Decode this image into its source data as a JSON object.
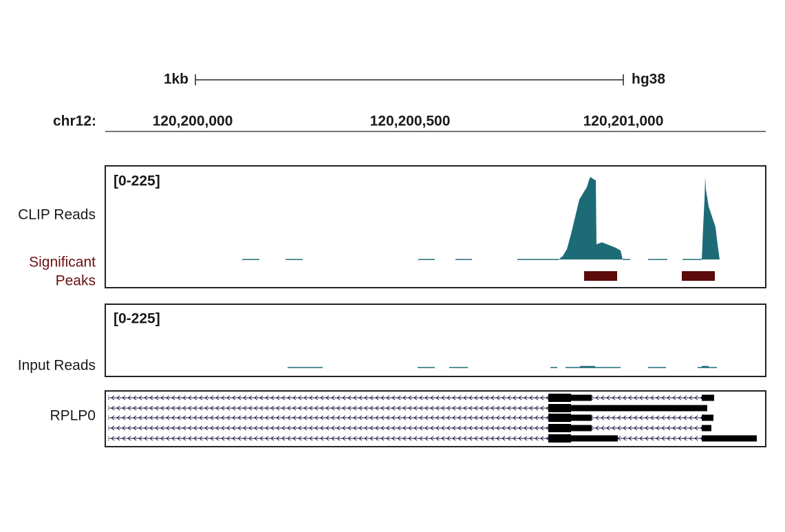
{
  "scale_bar": {
    "label": "1kb",
    "genome": "hg38"
  },
  "ruler": {
    "chromosome": "chr12:",
    "positions": [
      "120,200,000",
      "120,200,500",
      "120,201,000"
    ]
  },
  "tracks": [
    {
      "name": "CLIP Reads",
      "range": "[0-225]"
    },
    {
      "name": "Input Reads",
      "range": "[0-225]"
    }
  ],
  "peaks_track": {
    "name_lines": [
      "Significant",
      "Peaks"
    ]
  },
  "gene": {
    "name": "RPLP0"
  }
}
